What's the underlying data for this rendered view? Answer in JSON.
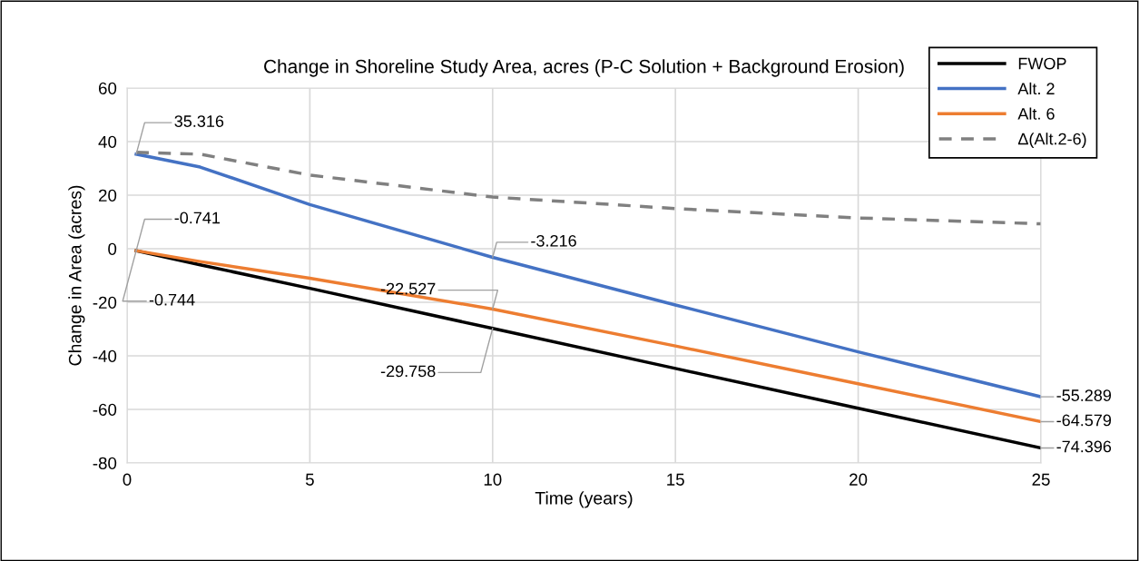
{
  "chart_data": {
    "type": "line",
    "title": "Change in Shoreline Study Area, acres (P-C Solution + Background Erosion)",
    "xlabel": "Time (years)",
    "ylabel": "Change in Area (acres)",
    "x": [
      0.25,
      2,
      5,
      10,
      15,
      20,
      25
    ],
    "series": [
      {
        "name": "FWOP",
        "color": "#000000",
        "values": [
          -0.744,
          -6,
          -14.8,
          -29.758,
          -44.7,
          -59.6,
          -74.396
        ],
        "value_labels": [
          "-0.744",
          null,
          null,
          "-29.758",
          null,
          null,
          "-74.396"
        ]
      },
      {
        "name": "Alt. 2",
        "color": "#4472c4",
        "values": [
          35.316,
          30.5,
          16.5,
          -3.216,
          -21,
          -38.5,
          -55.289
        ],
        "value_labels": [
          "35.316",
          null,
          null,
          "-3.216",
          null,
          null,
          "-55.289"
        ]
      },
      {
        "name": "Alt. 6",
        "color": "#ed7d31",
        "values": [
          -0.741,
          -4.8,
          -11,
          -22.527,
          -36.3,
          -50.4,
          -64.579
        ],
        "value_labels": [
          "-0.741",
          null,
          null,
          "-22.527",
          null,
          null,
          "-64.579"
        ]
      },
      {
        "name": "Δ(Alt.2-6)",
        "color": "#808080",
        "line_style": "dashed",
        "values": [
          36,
          35.3,
          27.5,
          19.3,
          15,
          11.5,
          9.3
        ]
      }
    ],
    "xlim": [
      0,
      25
    ],
    "xticks": [
      0,
      5,
      10,
      15,
      20,
      25
    ],
    "ylim": [
      -80,
      60
    ],
    "yticks": [
      -80,
      -60,
      -40,
      -20,
      0,
      20,
      40,
      60
    ],
    "grid": true,
    "legend": "top right",
    "marker": "none"
  }
}
